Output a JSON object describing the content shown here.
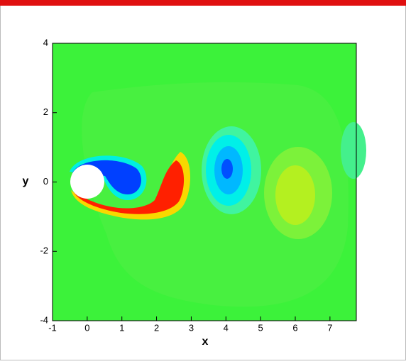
{
  "chart_data": {
    "type": "contour",
    "xlabel": "x",
    "ylabel": "y",
    "xlim": [
      -1,
      7.76
    ],
    "ylim": [
      -4,
      4
    ],
    "xticks": [
      -1,
      0,
      1,
      2,
      3,
      4,
      5,
      6,
      7
    ],
    "yticks": [
      -4,
      -2,
      0,
      2,
      4
    ]
  }
}
